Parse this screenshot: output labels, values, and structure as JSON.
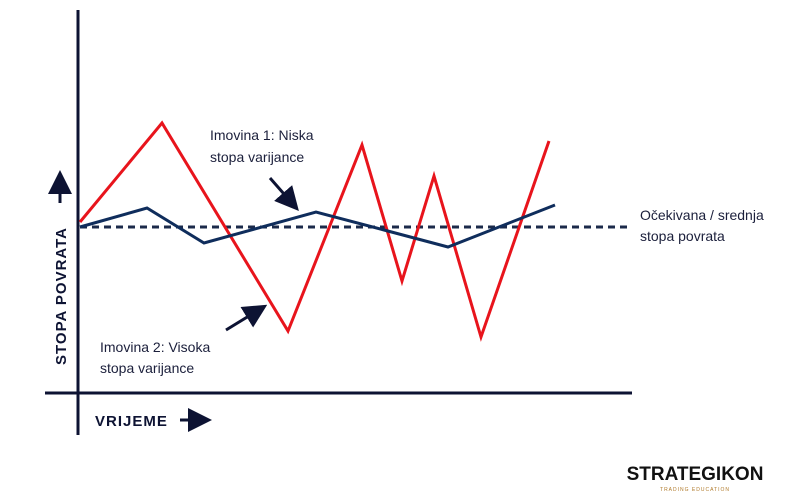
{
  "axes": {
    "y_label": "STOPA POVRATA",
    "x_label": "VRIJEME"
  },
  "annotations": {
    "asset1": [
      "Imovina 1: Niska",
      "stopa varijance"
    ],
    "asset2": [
      "Imovina 2: Visoka",
      "stopa varijance"
    ],
    "mean": [
      "Očekivana / srednja",
      "stopa povrata"
    ]
  },
  "logo": {
    "name": "STRATEGIKON",
    "tagline": "TRADING EDUCATION"
  }
}
